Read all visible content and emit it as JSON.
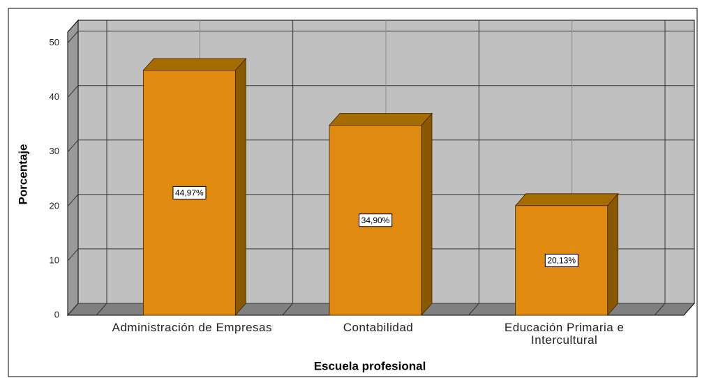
{
  "chart_data": {
    "type": "bar",
    "x_label": "Escuela profesional",
    "y_label": "Porcentaje",
    "categories": [
      "Administración de Empresas",
      "Contabilidad",
      "Educación Primaria e Intercultural"
    ],
    "values": [
      44.97,
      34.9,
      20.13
    ],
    "value_labels": [
      "44,97%",
      "34,90%",
      "20,13%"
    ],
    "color": "#e08a10",
    "ylim": [
      0,
      52
    ],
    "yticks": [
      0,
      10,
      20,
      30,
      40,
      50
    ],
    "grid": true
  }
}
